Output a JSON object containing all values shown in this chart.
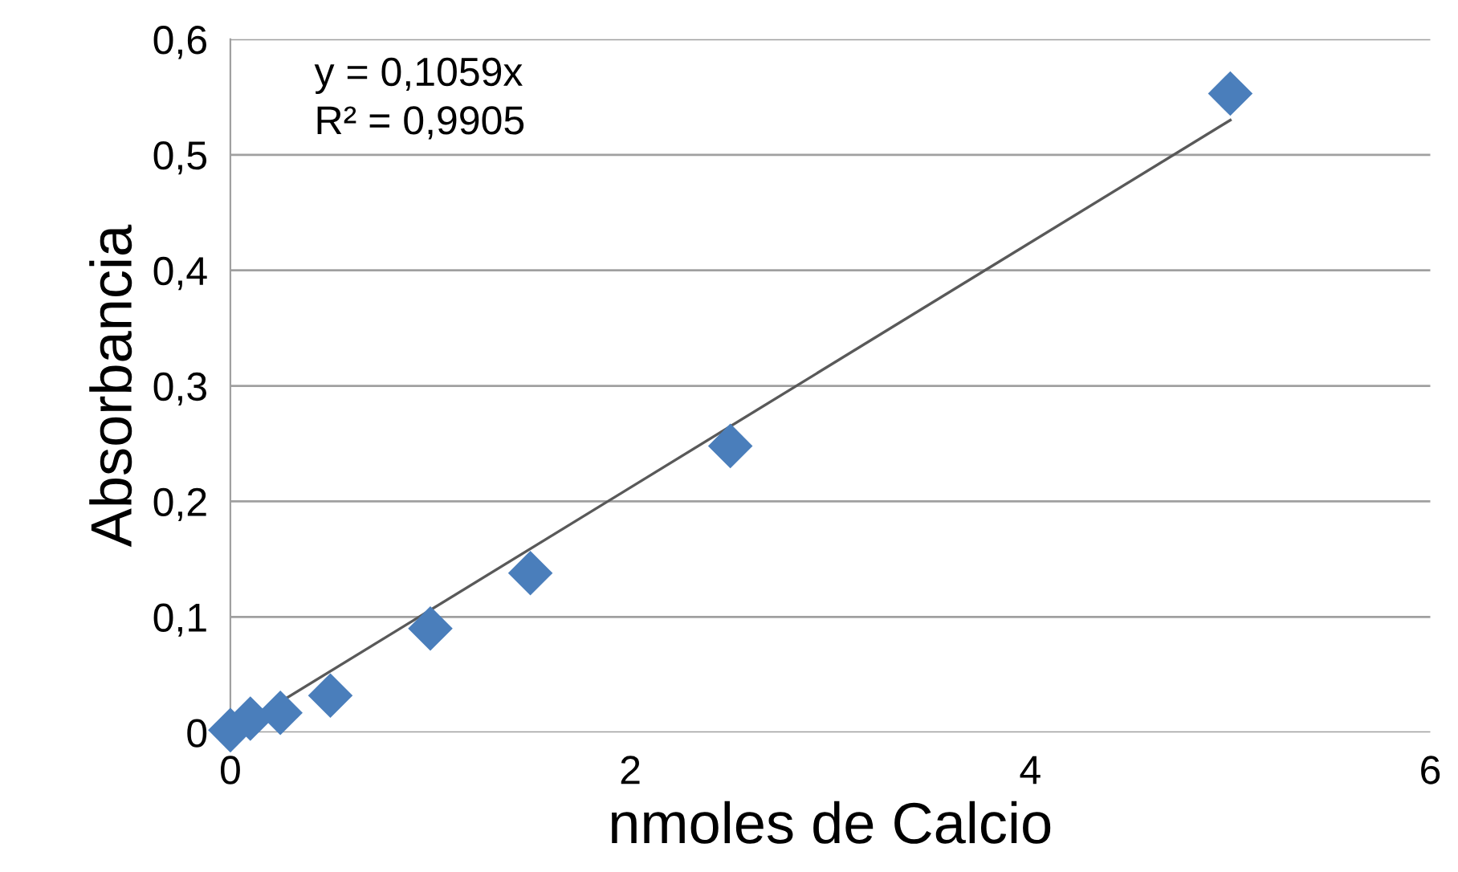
{
  "chart_data": {
    "type": "scatter",
    "xlabel": "nmoles de Calcio",
    "ylabel": "Absorbancia",
    "xlim": [
      0,
      6
    ],
    "xticks": [
      0,
      2,
      4,
      6
    ],
    "ylim": [
      0,
      0.6
    ],
    "yticks": [
      {
        "value": 0,
        "label": "0"
      },
      {
        "value": 0.1,
        "label": "0,1"
      },
      {
        "value": 0.2,
        "label": "0,2"
      },
      {
        "value": 0.3,
        "label": "0,3"
      },
      {
        "value": 0.4,
        "label": "0,4"
      },
      {
        "value": 0.5,
        "label": "0,5"
      },
      {
        "value": 0.6,
        "label": "0,6"
      }
    ],
    "grid": "y",
    "series": [
      {
        "marker": "diamond",
        "color": "#4a7ebb",
        "x": [
          0,
          0.1,
          0.25,
          0.5,
          1,
          1.5,
          2.5,
          5
        ],
        "values": [
          0.002,
          0.012,
          0.017,
          0.032,
          0.09,
          0.138,
          0.248,
          0.553
        ]
      },
      {
        "type": "line",
        "color": "#595959",
        "x": [
          0,
          5
        ],
        "values": [
          0,
          0.53
        ]
      }
    ],
    "annotations": [
      "y = 0,1059x",
      "R² = 0,9905"
    ]
  }
}
